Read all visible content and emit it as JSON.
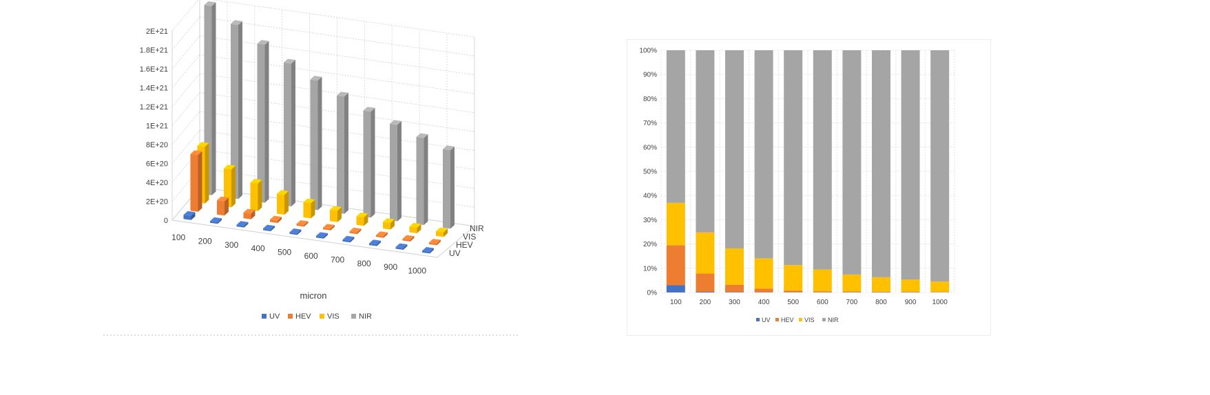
{
  "colors": {
    "UV": "#4472C4",
    "HEV": "#ED7D31",
    "VIS": "#FFC000",
    "NIR": "#A5A5A5"
  },
  "chart_data": [
    {
      "type": "bar",
      "variant": "3d-clustered",
      "title": "",
      "xlabel": "micron",
      "ylabel": "",
      "categories": [
        "100",
        "200",
        "300",
        "400",
        "500",
        "600",
        "700",
        "800",
        "900",
        "1000"
      ],
      "depth_labels": [
        "UV",
        "HEV",
        "VIS",
        "NIR"
      ],
      "ylim": [
        0,
        2e+21
      ],
      "yticks": [
        "0",
        "2E+20",
        "4E+20",
        "6E+20",
        "8E+20",
        "1E+21",
        "1.2E+21",
        "1.4E+21",
        "1.6E+21",
        "1.8E+21",
        "2E+21"
      ],
      "grid": true,
      "legend": "bottom",
      "series": [
        {
          "name": "UV",
          "values": [
            4.5e+19,
            2e+18,
            1e+18,
            1e+18,
            1e+18,
            1e+18,
            1e+18,
            1e+18,
            1e+18,
            1e+18
          ]
        },
        {
          "name": "HEV",
          "values": [
            6e+20,
            1.5e+20,
            6e+19,
            2.5e+19,
            1e+19,
            5e+18,
            3e+18,
            2e+18,
            2e+18,
            1e+18
          ]
        },
        {
          "name": "VIS",
          "values": [
            6e+20,
            4e+20,
            2.9e+20,
            2.1e+20,
            1.6e+20,
            1.2e+20,
            9e+19,
            7e+19,
            6e+19,
            5e+19
          ]
        },
        {
          "name": "NIR",
          "values": [
            2e+21,
            1.84e+21,
            1.67e+21,
            1.51e+21,
            1.37e+21,
            1.24e+21,
            1.12e+21,
            1.02e+21,
            9.2e+20,
            8.3e+20
          ]
        }
      ]
    },
    {
      "type": "bar",
      "variant": "100%-stacked",
      "title": "",
      "xlabel": "",
      "ylabel": "",
      "categories": [
        "100",
        "200",
        "300",
        "400",
        "500",
        "600",
        "700",
        "800",
        "900",
        "1000"
      ],
      "ylim": [
        0,
        100
      ],
      "yticks": [
        "0%",
        "10%",
        "20%",
        "30%",
        "40%",
        "50%",
        "60%",
        "70%",
        "80%",
        "90%",
        "100%"
      ],
      "grid": true,
      "legend": "bottom",
      "series": [
        {
          "name": "UV",
          "values": [
            3,
            0.3,
            0.2,
            0.1,
            0.1,
            0.1,
            0.1,
            0.1,
            0.1,
            0.1
          ]
        },
        {
          "name": "HEV",
          "values": [
            16.5,
            7.5,
            3,
            1.5,
            0.7,
            0.4,
            0.3,
            0.2,
            0.2,
            0.1
          ]
        },
        {
          "name": "VIS",
          "values": [
            17.5,
            17,
            15,
            12.5,
            10.5,
            9,
            7,
            6,
            5,
            4.3
          ]
        },
        {
          "name": "NIR",
          "values": [
            63,
            75.2,
            81.8,
            85.9,
            88.7,
            90.5,
            92.6,
            93.7,
            94.7,
            95.5
          ]
        }
      ]
    }
  ]
}
